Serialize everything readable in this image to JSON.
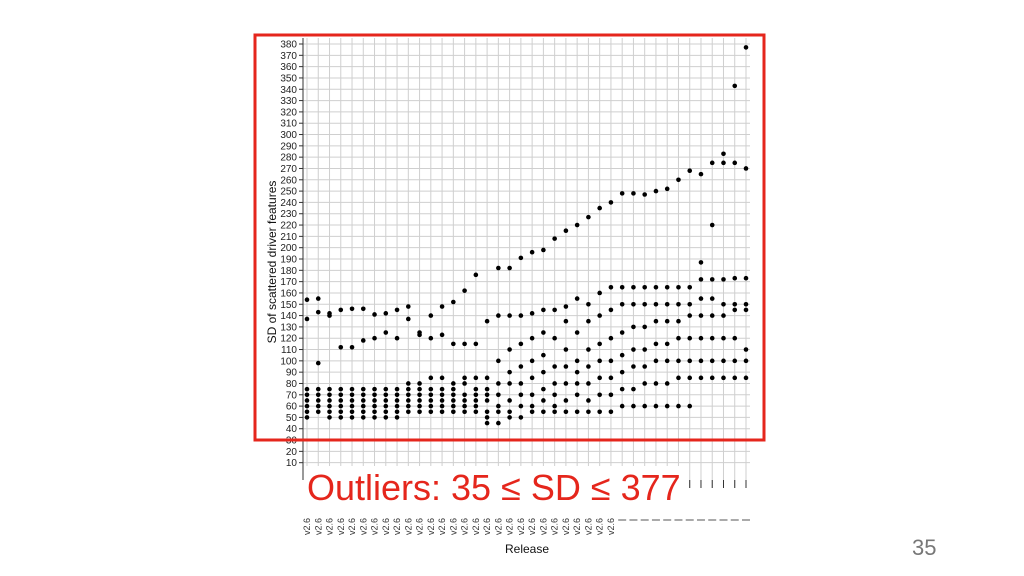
{
  "slide": {
    "callout": "Outliers: 35 ≤ SD ≤ 377",
    "page_number": "35",
    "highlight_color": "#e5261c"
  },
  "chart_data": {
    "type": "scatter",
    "xlabel": "Release",
    "ylabel": "SD of scattered driver features",
    "ylim": [
      0,
      380
    ],
    "y_ticks": [
      10,
      20,
      30,
      40,
      50,
      60,
      70,
      80,
      90,
      100,
      110,
      120,
      130,
      140,
      150,
      160,
      170,
      180,
      190,
      200,
      210,
      220,
      230,
      240,
      250,
      260,
      270,
      280,
      290,
      300,
      310,
      320,
      330,
      340,
      350,
      360,
      370,
      380
    ],
    "category_count": 40,
    "category_labels_visible": [
      "v2.6",
      "v2.6",
      "v2.6",
      "v2.6",
      "v2.6",
      "v2.6",
      "v2.6",
      "v2.6",
      "v2.6",
      "v2.6",
      "v2.6",
      "v2.6",
      "v2.6",
      "v2.6",
      "v2.6",
      "v2.6",
      "v2.6",
      "v2.6",
      "v2.6",
      "v2.6",
      "v2.6",
      "v2.6",
      "v2.6",
      "v2.6",
      "v2.6",
      "v2.6",
      "v2.6",
      "v2.6"
    ],
    "grid": true,
    "legend": "none",
    "outlier_range": [
      35,
      377
    ],
    "series": [
      {
        "values": [
          [
            137,
            154,
            60,
            55,
            50,
            65,
            70,
            75
          ],
          [
            155,
            143,
            98,
            65,
            60,
            55,
            70,
            75
          ],
          [
            142,
            140,
            55,
            60,
            65,
            70,
            75,
            50
          ],
          [
            145,
            112,
            60,
            55,
            65,
            70,
            75,
            50
          ],
          [
            146,
            112,
            60,
            50,
            55,
            65,
            70,
            75
          ],
          [
            146,
            118,
            55,
            60,
            65,
            70,
            75,
            50
          ],
          [
            141,
            120,
            65,
            60,
            55,
            70,
            75,
            50
          ],
          [
            142,
            125,
            60,
            55,
            65,
            70,
            75,
            50
          ],
          [
            145,
            120,
            55,
            60,
            65,
            70,
            50,
            75
          ],
          [
            148,
            137,
            65,
            60,
            55,
            70,
            75,
            80
          ],
          [
            125,
            123,
            60,
            55,
            65,
            70,
            75,
            80
          ],
          [
            140,
            120,
            65,
            60,
            55,
            70,
            75,
            85
          ],
          [
            148,
            123,
            70,
            65,
            60,
            55,
            75,
            85
          ],
          [
            152,
            115,
            65,
            60,
            55,
            70,
            75,
            80
          ],
          [
            162,
            115,
            65,
            60,
            55,
            70,
            80,
            85
          ],
          [
            176,
            115,
            60,
            55,
            65,
            70,
            75,
            85
          ],
          [
            135,
            85,
            75,
            70,
            65,
            55,
            50,
            45
          ],
          [
            182,
            140,
            100,
            80,
            70,
            60,
            55,
            45
          ],
          [
            182,
            140,
            110,
            90,
            80,
            65,
            55,
            50
          ],
          [
            191,
            140,
            115,
            95,
            80,
            70,
            60,
            50
          ],
          [
            196,
            142,
            120,
            100,
            85,
            70,
            60,
            55
          ],
          [
            198,
            145,
            125,
            105,
            90,
            75,
            65,
            55
          ],
          [
            208,
            145,
            120,
            95,
            80,
            70,
            60,
            55
          ],
          [
            215,
            148,
            135,
            110,
            95,
            80,
            65,
            55
          ],
          [
            220,
            155,
            125,
            100,
            90,
            80,
            70,
            55
          ],
          [
            227,
            150,
            135,
            110,
            95,
            80,
            65,
            55
          ],
          [
            235,
            160,
            140,
            115,
            100,
            85,
            70,
            55
          ],
          [
            240,
            165,
            145,
            120,
            100,
            85,
            70,
            55
          ],
          [
            248,
            165,
            150,
            125,
            105,
            90,
            75,
            60
          ],
          [
            248,
            165,
            150,
            130,
            110,
            95,
            75,
            60
          ],
          [
            247,
            165,
            150,
            130,
            110,
            95,
            80,
            60
          ],
          [
            250,
            165,
            150,
            135,
            115,
            100,
            80,
            60
          ],
          [
            252,
            165,
            150,
            135,
            115,
            100,
            80,
            60
          ],
          [
            260,
            165,
            150,
            135,
            120,
            100,
            85,
            60
          ],
          [
            268,
            165,
            150,
            140,
            120,
            100,
            85,
            60
          ],
          [
            265,
            187,
            172,
            155,
            140,
            120,
            100,
            85
          ],
          [
            275,
            220,
            172,
            155,
            140,
            120,
            100,
            85
          ],
          [
            283,
            275,
            172,
            150,
            140,
            120,
            100,
            85
          ],
          [
            275,
            343,
            173,
            150,
            145,
            120,
            100,
            85
          ],
          [
            377,
            270,
            173,
            150,
            145,
            110,
            100,
            85
          ]
        ]
      }
    ]
  }
}
